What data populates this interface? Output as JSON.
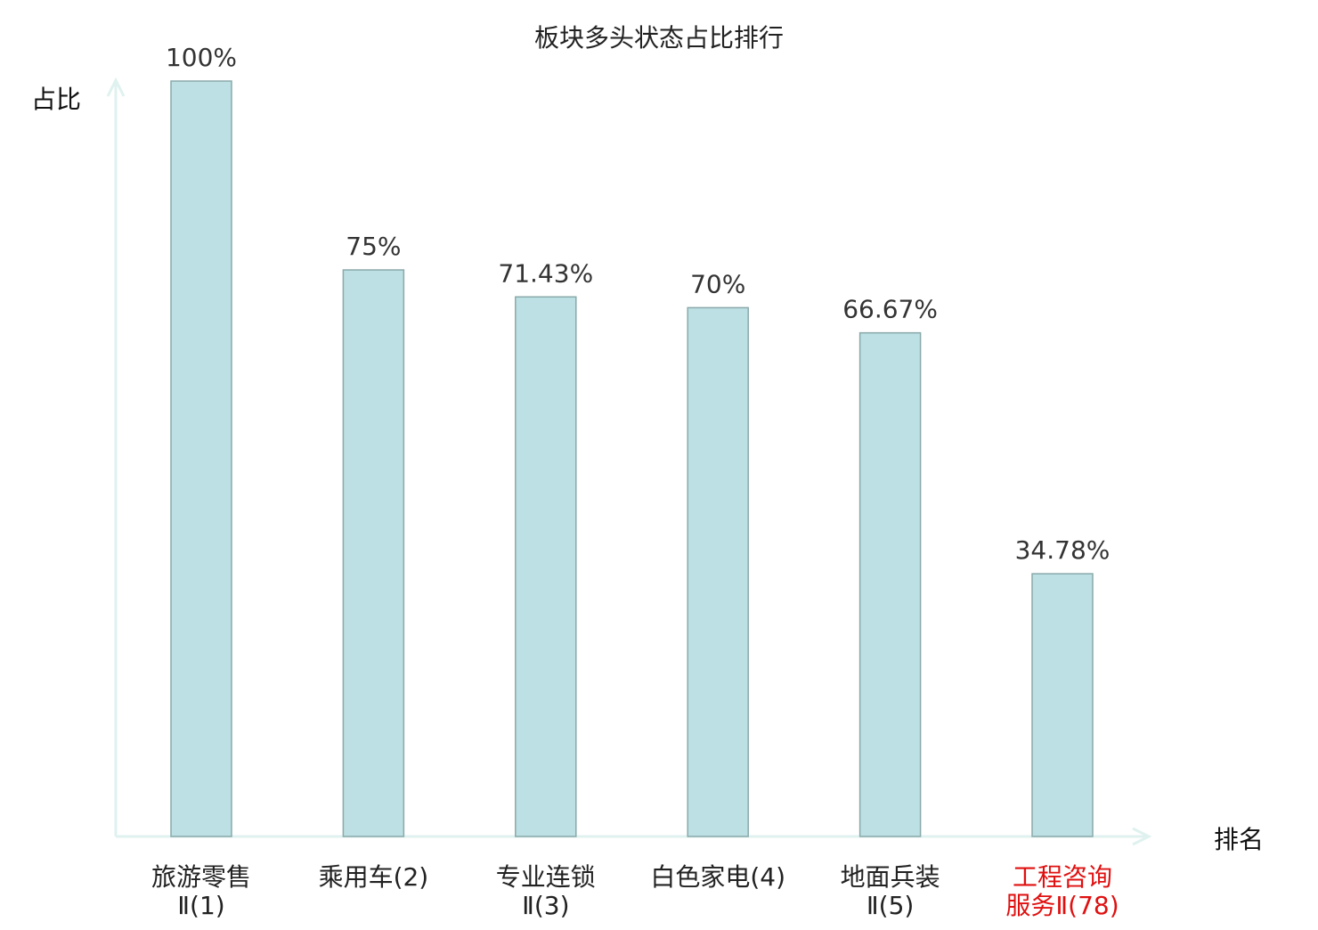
{
  "chart_data": {
    "type": "bar",
    "title": "板块多头状态占比排行",
    "xlabel": "排名",
    "ylabel": "占比",
    "ylim": [
      0,
      100
    ],
    "grid": false,
    "categories": [
      [
        "旅游零售",
        "Ⅱ(1)"
      ],
      [
        "乘用车(2)"
      ],
      [
        "专业连锁",
        "Ⅱ(3)"
      ],
      [
        "白色家电(4)"
      ],
      [
        "地面兵装",
        "Ⅱ(5)"
      ],
      [
        "工程咨询",
        "服务Ⅱ(78)"
      ]
    ],
    "values": [
      100,
      75,
      71.43,
      70,
      66.67,
      34.78
    ],
    "value_labels": [
      "100%",
      "75%",
      "71.43%",
      "70%",
      "66.67%",
      "34.78%"
    ],
    "highlight_index": 5,
    "colors": {
      "bar_fill": "#bce0e3",
      "bar_stroke": "#8aa9aa",
      "axis": "#dff2ef",
      "text": "#222222",
      "value_text": "#333333",
      "highlight_text": "#e01010"
    }
  }
}
